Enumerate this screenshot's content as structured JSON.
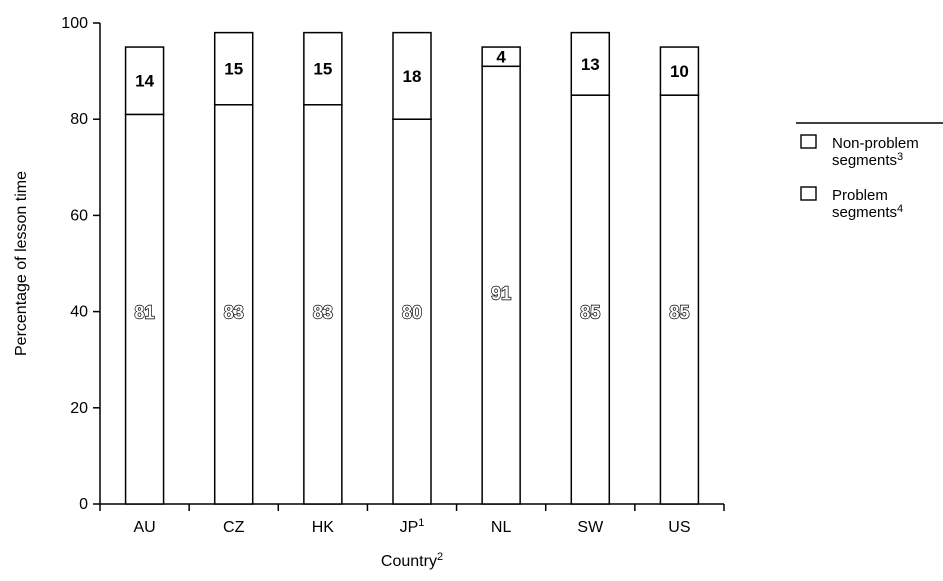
{
  "chart_data": {
    "type": "bar",
    "stacked": true,
    "categories": [
      "AU",
      "CZ",
      "HK",
      "JP",
      "NL",
      "SW",
      "US"
    ],
    "category_superscripts": [
      "",
      "",
      "",
      "1",
      "",
      "",
      ""
    ],
    "series": [
      {
        "name": "Problem segments",
        "name_superscript": "4",
        "values": [
          81,
          83,
          83,
          80,
          91,
          85,
          85
        ]
      },
      {
        "name": "Non-problem segments",
        "name_superscript": "3",
        "values": [
          14,
          15,
          15,
          18,
          4,
          13,
          10
        ]
      }
    ],
    "xlabel": "Country",
    "xlabel_superscript": "2",
    "ylabel": "Percentage of lesson time",
    "ylim": [
      0,
      100
    ],
    "yticks": [
      0,
      20,
      40,
      60,
      80,
      100
    ],
    "grid": false,
    "legend": {
      "position": "right",
      "items": [
        {
          "line1": "Non-problem",
          "line2": "segments",
          "sup": "3"
        },
        {
          "line1": "Problem",
          "line2": "segments",
          "sup": "4"
        }
      ]
    },
    "colors": {
      "bar_fill": "#ffffff",
      "bar_stroke": "#000000",
      "axis": "#000000"
    }
  }
}
